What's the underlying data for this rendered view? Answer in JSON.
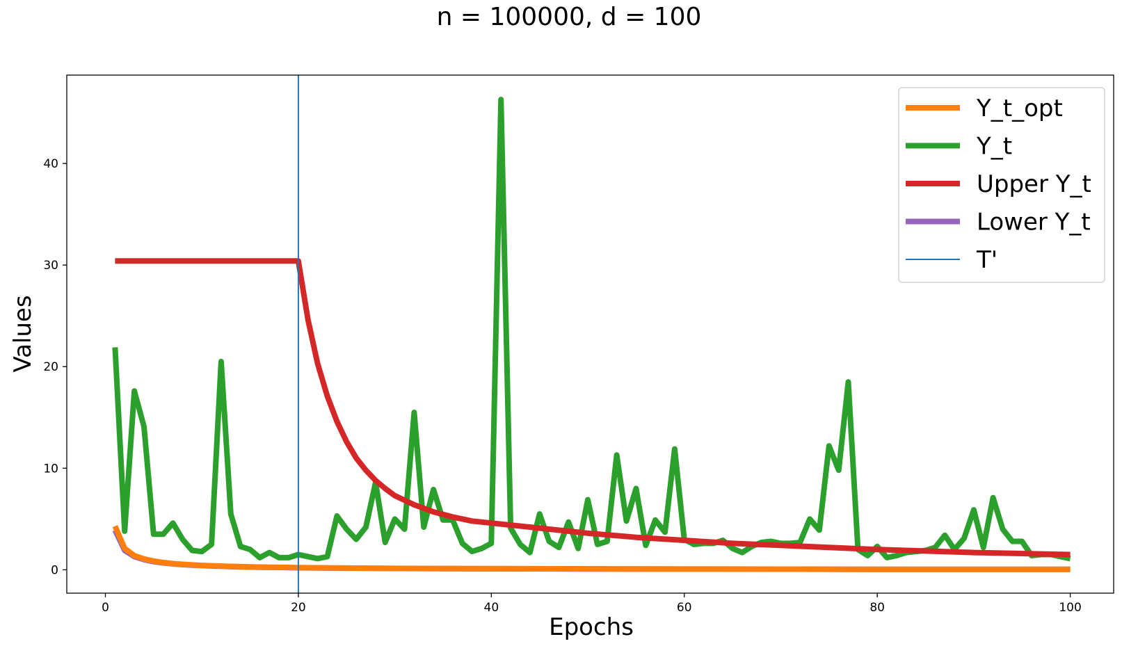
{
  "chart_data": {
    "type": "line",
    "title": "n = 100000, d = 100",
    "xlabel": "Epochs",
    "ylabel": "Values",
    "xlim": [
      -4,
      104.5
    ],
    "ylim": [
      -2.3,
      48.7
    ],
    "xticks": [
      0,
      20,
      40,
      60,
      80,
      100
    ],
    "yticks": [
      0,
      10,
      20,
      30,
      40
    ],
    "grid": false,
    "legend_position": "top-right",
    "vline": {
      "name": "T'",
      "x": 20,
      "color": "#1f77b4"
    },
    "series": [
      {
        "name": "Y_t_opt",
        "color": "#ff7f0e",
        "x": [
          1,
          2,
          3,
          4,
          5,
          6,
          7,
          8,
          9,
          10,
          12,
          14,
          16,
          18,
          20,
          25,
          30,
          40,
          50,
          60,
          70,
          80,
          90,
          100
        ],
        "values": [
          4.3,
          2.1,
          1.4,
          1.07,
          0.86,
          0.72,
          0.61,
          0.54,
          0.48,
          0.43,
          0.36,
          0.31,
          0.27,
          0.24,
          0.22,
          0.17,
          0.14,
          0.11,
          0.09,
          0.07,
          0.06,
          0.05,
          0.05,
          0.04
        ]
      },
      {
        "name": "Y_t",
        "color": "#2ca02c",
        "x": [
          1,
          2,
          3,
          4,
          5,
          6,
          7,
          8,
          9,
          10,
          11,
          12,
          13,
          14,
          15,
          16,
          17,
          18,
          19,
          20,
          21,
          22,
          23,
          24,
          25,
          26,
          27,
          28,
          29,
          30,
          31,
          32,
          33,
          34,
          35,
          36,
          37,
          38,
          39,
          40,
          41,
          42,
          43,
          44,
          45,
          46,
          47,
          48,
          49,
          50,
          51,
          52,
          53,
          54,
          55,
          56,
          57,
          58,
          59,
          60,
          61,
          62,
          63,
          64,
          65,
          66,
          67,
          68,
          69,
          70,
          71,
          72,
          73,
          74,
          75,
          76,
          77,
          78,
          79,
          80,
          81,
          82,
          83,
          84,
          85,
          86,
          87,
          88,
          89,
          90,
          91,
          92,
          93,
          94,
          95,
          96,
          97,
          98,
          99,
          100
        ],
        "values": [
          21.9,
          3.8,
          17.6,
          14.1,
          3.5,
          3.5,
          4.6,
          3.0,
          1.9,
          1.8,
          2.5,
          20.5,
          5.5,
          2.3,
          2.0,
          1.2,
          1.7,
          1.2,
          1.2,
          1.5,
          1.3,
          1.1,
          1.3,
          5.3,
          4.0,
          3.0,
          4.2,
          8.6,
          2.7,
          5.0,
          4.0,
          15.5,
          4.2,
          7.9,
          4.9,
          4.9,
          2.6,
          1.8,
          2.1,
          2.6,
          46.3,
          4.1,
          2.5,
          1.7,
          5.5,
          2.8,
          2.2,
          4.7,
          2.1,
          6.9,
          2.5,
          2.8,
          11.3,
          4.8,
          8.0,
          2.4,
          4.9,
          3.7,
          11.9,
          3.0,
          2.5,
          2.6,
          2.6,
          2.9,
          2.1,
          1.7,
          2.3,
          2.7,
          2.8,
          2.6,
          2.6,
          2.7,
          5.0,
          3.9,
          12.2,
          9.8,
          18.5,
          2.0,
          1.4,
          2.3,
          1.2,
          1.4,
          1.7,
          1.8,
          1.9,
          2.2,
          3.4,
          2.0,
          3.1,
          5.9,
          2.2,
          7.1,
          4.0,
          2.8,
          2.8,
          1.4,
          1.5,
          1.5,
          1.3,
          1.1
        ]
      },
      {
        "name": "Upper Y_t",
        "color": "#d62728",
        "x": [
          1,
          5,
          10,
          15,
          20,
          21,
          22,
          23,
          24,
          25,
          26,
          27,
          28,
          29,
          30,
          32,
          34,
          36,
          38,
          40,
          45,
          50,
          55,
          60,
          65,
          70,
          75,
          80,
          85,
          90,
          95,
          100
        ],
        "values": [
          30.4,
          30.4,
          30.4,
          30.4,
          30.4,
          24.6,
          20.3,
          17.1,
          14.6,
          12.6,
          11.0,
          9.8,
          8.8,
          8.0,
          7.3,
          6.4,
          5.7,
          5.2,
          4.8,
          4.6,
          4.1,
          3.6,
          3.2,
          2.9,
          2.6,
          2.4,
          2.2,
          2.0,
          1.85,
          1.7,
          1.6,
          1.5
        ]
      },
      {
        "name": "Lower Y_t",
        "color": "#9467bd",
        "x": [
          1,
          2,
          3,
          4,
          5,
          6,
          7,
          8,
          9,
          10,
          12,
          14,
          16,
          18,
          20,
          25,
          30,
          40,
          50,
          60,
          70,
          80,
          90,
          100
        ],
        "values": [
          3.9,
          1.9,
          1.3,
          1.0,
          0.8,
          0.68,
          0.58,
          0.51,
          0.45,
          0.41,
          0.34,
          0.29,
          0.25,
          0.23,
          0.2,
          0.16,
          0.13,
          0.1,
          0.08,
          0.07,
          0.06,
          0.05,
          0.04,
          0.04
        ]
      }
    ]
  }
}
